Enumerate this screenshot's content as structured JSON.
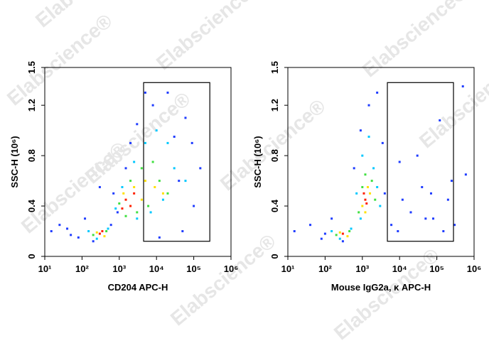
{
  "watermark": "Elabscience®",
  "chart_data": [
    {
      "type": "scatter",
      "xlabel": "CD204 APC-H",
      "ylabel": "SSC-H (10⁶)",
      "xscale": "log",
      "xlim": [
        10,
        1000000
      ],
      "ylim": [
        0,
        1.5
      ],
      "xticks": [
        {
          "value": 10,
          "label": "10¹"
        },
        {
          "value": 100,
          "label": "10²"
        },
        {
          "value": 1000,
          "label": "10³"
        },
        {
          "value": 10000,
          "label": "10⁴"
        },
        {
          "value": 100000,
          "label": "10⁵"
        },
        {
          "value": 1000000,
          "label": "10⁶"
        }
      ],
      "yticks": [
        0,
        0.4,
        0.8,
        1.2,
        1.5
      ],
      "gate": {
        "x": [
          4500,
          270000
        ],
        "y": [
          0.12,
          1.38
        ]
      },
      "series": [
        {
          "color": "#1f3cff",
          "x": [
            15,
            40,
            80,
            120,
            200,
            600,
            900,
            1500,
            3000,
            8000,
            20000,
            60000,
            150000,
            100000,
            50000,
            30000,
            2000,
            700,
            50,
            25,
            5000,
            12000,
            40000,
            90000,
            300
          ],
          "values": [
            0.2,
            0.22,
            0.15,
            0.3,
            0.12,
            0.25,
            0.35,
            0.7,
            1.05,
            1.2,
            1.3,
            1.1,
            0.7,
            0.4,
            0.2,
            0.95,
            0.9,
            0.5,
            0.17,
            0.25,
            1.3,
            0.15,
            0.6,
            0.9,
            0.55
          ]
        },
        {
          "color": "#00c8ff",
          "x": [
            150,
            250,
            500,
            800,
            1200,
            2500,
            5000,
            10000,
            20000,
            30000,
            15000,
            7000,
            3000,
            60000
          ],
          "values": [
            0.2,
            0.14,
            0.22,
            0.38,
            0.55,
            0.75,
            0.9,
            1.0,
            0.9,
            0.7,
            0.45,
            0.35,
            0.3,
            0.6
          ]
        },
        {
          "color": "#40e040",
          "x": [
            200,
            450,
            1000,
            2000,
            4000,
            8000,
            12000,
            20000,
            6000,
            3000,
            1500
          ],
          "values": [
            0.17,
            0.2,
            0.42,
            0.6,
            0.7,
            0.75,
            0.6,
            0.5,
            0.4,
            0.35,
            0.32
          ]
        },
        {
          "color": "#ffe000",
          "x": [
            250,
            400,
            1300,
            2500,
            5000,
            9000,
            15000,
            4000
          ],
          "values": [
            0.19,
            0.16,
            0.5,
            0.55,
            0.6,
            0.55,
            0.5,
            0.45
          ]
        },
        {
          "color": "#ff2000",
          "x": [
            300,
            350,
            1500,
            2000,
            1200,
            2500
          ],
          "values": [
            0.18,
            0.2,
            0.45,
            0.4,
            0.38,
            0.5
          ]
        }
      ]
    },
    {
      "type": "scatter",
      "xlabel": "Mouse IgG2a, κ APC-H",
      "ylabel": "SSC-H (10⁶)",
      "xscale": "log",
      "xlim": [
        10,
        1000000
      ],
      "ylim": [
        0,
        1.5
      ],
      "xticks": [
        {
          "value": 10,
          "label": "10¹"
        },
        {
          "value": 100,
          "label": "10²"
        },
        {
          "value": 1000,
          "label": "10³"
        },
        {
          "value": 10000,
          "label": "10⁴"
        },
        {
          "value": 100000,
          "label": "10⁵"
        },
        {
          "value": 1000000,
          "label": "10⁶"
        }
      ],
      "yticks": [
        0,
        0.4,
        0.8,
        1.2,
        1.5
      ],
      "gate": {
        "x": [
          4700,
          280000
        ],
        "y": [
          0.12,
          1.38
        ]
      },
      "series": [
        {
          "color": "#1f3cff",
          "x": [
            15,
            40,
            80,
            150,
            300,
            600,
            900,
            1500,
            2500,
            3500,
            4000,
            6000,
            10000,
            20000,
            40000,
            80000,
            150000,
            250000,
            300000,
            500000,
            600000,
            12000,
            30000,
            70000,
            120000,
            200000,
            9000,
            50000,
            100
          ],
          "values": [
            0.2,
            0.25,
            0.14,
            0.3,
            0.12,
            0.7,
            1.0,
            1.2,
            1.3,
            0.9,
            0.5,
            0.25,
            0.75,
            0.35,
            0.55,
            0.3,
            0.2,
            0.6,
            0.25,
            1.35,
            0.65,
            0.45,
            0.8,
            0.5,
            1.08,
            0.45,
            0.2,
            0.3,
            0.18
          ]
        },
        {
          "color": "#00c8ff",
          "x": [
            150,
            250,
            500,
            700,
            1000,
            1500,
            2000,
            2500,
            3000,
            900
          ],
          "values": [
            0.2,
            0.14,
            0.22,
            0.5,
            0.8,
            0.95,
            0.7,
            0.55,
            0.4,
            0.3
          ]
        },
        {
          "color": "#40e040",
          "x": [
            200,
            450,
            800,
            1200,
            1800,
            2200,
            1000
          ],
          "values": [
            0.17,
            0.2,
            0.35,
            0.65,
            0.6,
            0.45,
            0.55
          ]
        },
        {
          "color": "#ffe000",
          "x": [
            250,
            400,
            1000,
            1400,
            1600,
            1200
          ],
          "values": [
            0.19,
            0.16,
            0.4,
            0.55,
            0.5,
            0.35
          ]
        },
        {
          "color": "#ff2000",
          "x": [
            300,
            1200,
            1300,
            1100
          ],
          "values": [
            0.18,
            0.45,
            0.42,
            0.5
          ]
        }
      ]
    }
  ]
}
